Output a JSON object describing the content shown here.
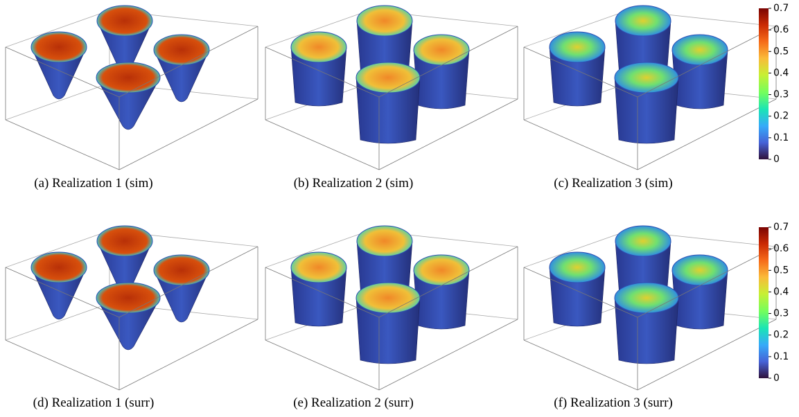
{
  "panels": [
    {
      "caption": "(a) Realization 1 (sim)"
    },
    {
      "caption": "(b) Realization 2 (sim)"
    },
    {
      "caption": "(c) Realization 3 (sim)"
    },
    {
      "caption": "(d) Realization 1 (surr)"
    },
    {
      "caption": "(e) Realization 2 (surr)"
    },
    {
      "caption": "(f) Realization 3 (surr)"
    }
  ],
  "colorbars": [
    {
      "lim": [
        0,
        0.7
      ],
      "ticks": [
        0,
        0.1,
        0.2,
        0.3,
        0.4,
        0.5,
        0.6,
        0.7
      ]
    },
    {
      "lim": [
        0,
        0.7
      ],
      "ticks": [
        0,
        0.1,
        0.2,
        0.3,
        0.4,
        0.5,
        0.6,
        0.7
      ]
    }
  ]
}
